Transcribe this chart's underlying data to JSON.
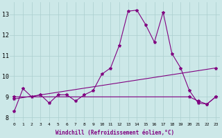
{
  "xlabel": "Windchill (Refroidissement éolien,°C)",
  "background_color": "#cce8e8",
  "grid_color": "#aacece",
  "line_color": "#800080",
  "xlim": [
    -0.5,
    23.5
  ],
  "ylim": [
    7.8,
    13.6
  ],
  "yticks": [
    8,
    9,
    10,
    11,
    12,
    13
  ],
  "xticks": [
    0,
    1,
    2,
    3,
    4,
    5,
    6,
    7,
    8,
    9,
    10,
    11,
    12,
    13,
    14,
    15,
    16,
    17,
    18,
    19,
    20,
    21,
    22,
    23
  ],
  "series1_x": [
    0,
    1,
    2,
    3,
    4,
    5,
    6,
    7,
    8,
    9,
    10,
    11,
    12,
    13,
    14,
    15,
    16,
    17,
    18,
    19,
    20,
    21,
    22,
    23
  ],
  "series1_y": [
    8.3,
    9.4,
    9.0,
    9.1,
    8.7,
    9.1,
    9.1,
    8.8,
    9.1,
    9.3,
    10.1,
    10.4,
    11.5,
    13.15,
    13.2,
    12.5,
    11.65,
    13.1,
    11.1,
    10.4,
    9.3,
    8.7,
    8.65,
    9.0
  ],
  "series2_x": [
    0,
    23
  ],
  "series2_y": [
    8.9,
    10.4
  ],
  "series3_x": [
    0,
    20,
    21,
    22,
    23
  ],
  "series3_y": [
    9.0,
    9.0,
    8.8,
    8.65,
    9.0
  ],
  "marker": "*",
  "markersize": 3,
  "linewidth": 0.8
}
